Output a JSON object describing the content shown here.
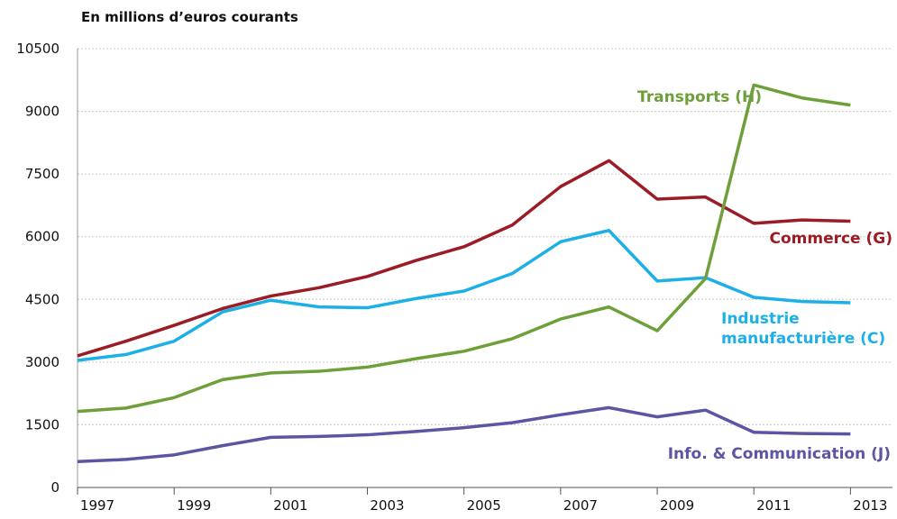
{
  "chart_data": {
    "type": "line",
    "title": "En millions d’euros courants",
    "x": [
      1997,
      1998,
      1999,
      2000,
      2001,
      2002,
      2003,
      2004,
      2005,
      2006,
      2007,
      2008,
      2009,
      2010,
      2011,
      2012,
      2013
    ],
    "xlim": [
      1997,
      2013.87
    ],
    "xticks": [
      1997,
      1999,
      2001,
      2003,
      2005,
      2007,
      2009,
      2011,
      2013
    ],
    "ylim": [
      0,
      10500
    ],
    "yticks": [
      0,
      1500,
      3000,
      4500,
      6000,
      7500,
      9000,
      10500
    ],
    "grid": true,
    "series": [
      {
        "name": "Commerce (G)",
        "color": "#9b1c24",
        "values": [
          3150,
          3500,
          3880,
          4280,
          4580,
          4780,
          5050,
          5430,
          5760,
          6280,
          7200,
          7820,
          6900,
          6950,
          6320,
          6400,
          6370
        ]
      },
      {
        "name": "Industrie manufacturière (C)",
        "color": "#1cb0e6",
        "values": [
          3040,
          3180,
          3500,
          4200,
          4480,
          4320,
          4300,
          4520,
          4700,
          5120,
          5880,
          6150,
          4940,
          5020,
          4550,
          4450,
          4420
        ]
      },
      {
        "name": "Transports (H)",
        "color": "#6ea03a",
        "values": [
          1820,
          1900,
          2150,
          2580,
          2740,
          2780,
          2880,
          3080,
          3260,
          3560,
          4030,
          4320,
          3750,
          5000,
          9630,
          9320,
          9150
        ]
      },
      {
        "name": "Info. & Communication (J)",
        "color": "#5b55a3",
        "values": [
          620,
          670,
          780,
          1000,
          1200,
          1220,
          1260,
          1340,
          1430,
          1550,
          1740,
          1910,
          1690,
          1850,
          1320,
          1290,
          1280
        ]
      }
    ]
  }
}
